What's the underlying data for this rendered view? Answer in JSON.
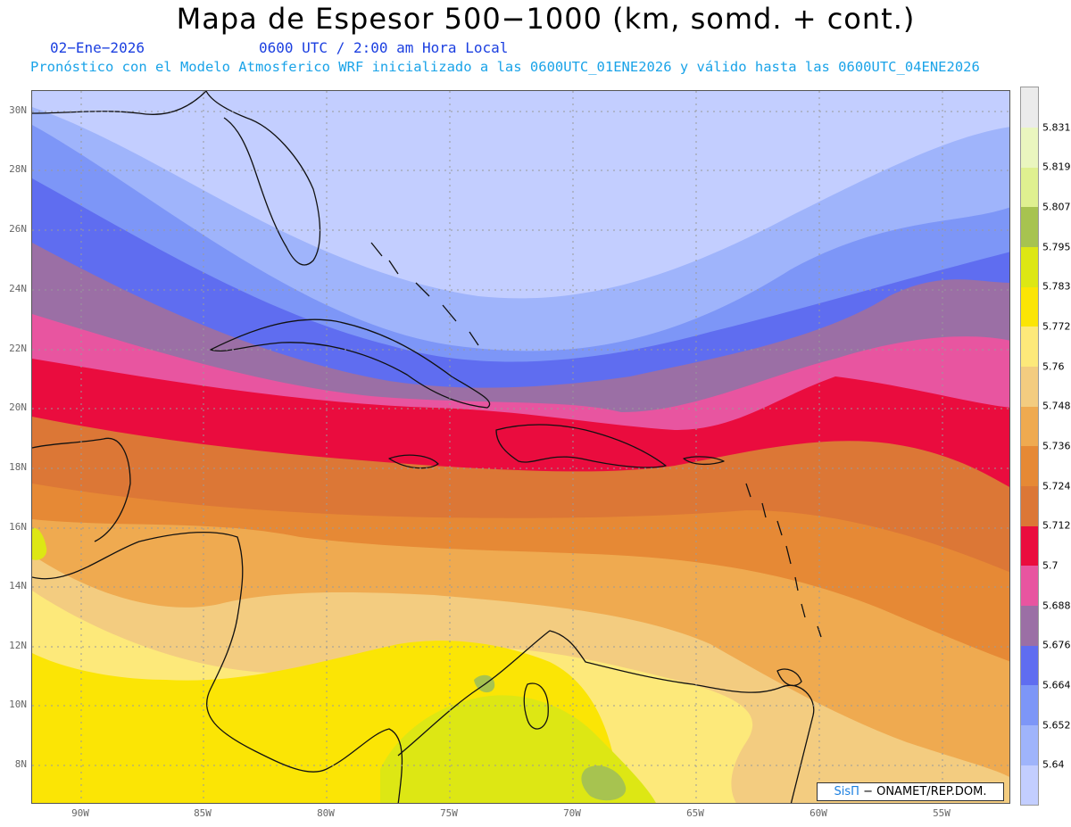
{
  "header": {
    "title": "Mapa de Espesor 500−1000 (km, somd. + cont.)",
    "date": "02−Ene−2026",
    "time": "0600 UTC / 2:00 am Hora Local",
    "subtitle": "Pronóstico con el Modelo Atmosferico WRF inicializado a las 0600UTC_01ENE2026 y válido hasta las  0600UTC_04ENE2026"
  },
  "map": {
    "lat_labels": [
      "30N",
      "28N",
      "26N",
      "24N",
      "22N",
      "20N",
      "18N",
      "16N",
      "14N",
      "12N",
      "10N",
      "8N"
    ],
    "lon_labels": [
      "90W",
      "85W",
      "80W",
      "75W",
      "70W",
      "65W",
      "60W",
      "55W"
    ]
  },
  "colorbar": {
    "levels": [
      "5.64",
      "5.652",
      "5.664",
      "5.676",
      "5.688",
      "5.7",
      "5.712",
      "5.724",
      "5.736",
      "5.748",
      "5.76",
      "5.772",
      "5.783",
      "5.795",
      "5.807",
      "5.819",
      "5.831"
    ],
    "colors": [
      "#c3ceff",
      "#9fb4fb",
      "#7d96f7",
      "#5f6df0",
      "#9b6fa5",
      "#e855a0",
      "#ea0c3e",
      "#dc7736",
      "#e68935",
      "#efaa50",
      "#f3cc80",
      "#fde97a",
      "#fbe505",
      "#dde714",
      "#a7c350",
      "#dff090",
      "#eaf6bf",
      "#ebebeb"
    ]
  },
  "credit": {
    "brand": "SisΠ",
    "text": "− ONAMET/REP.DOM."
  }
}
